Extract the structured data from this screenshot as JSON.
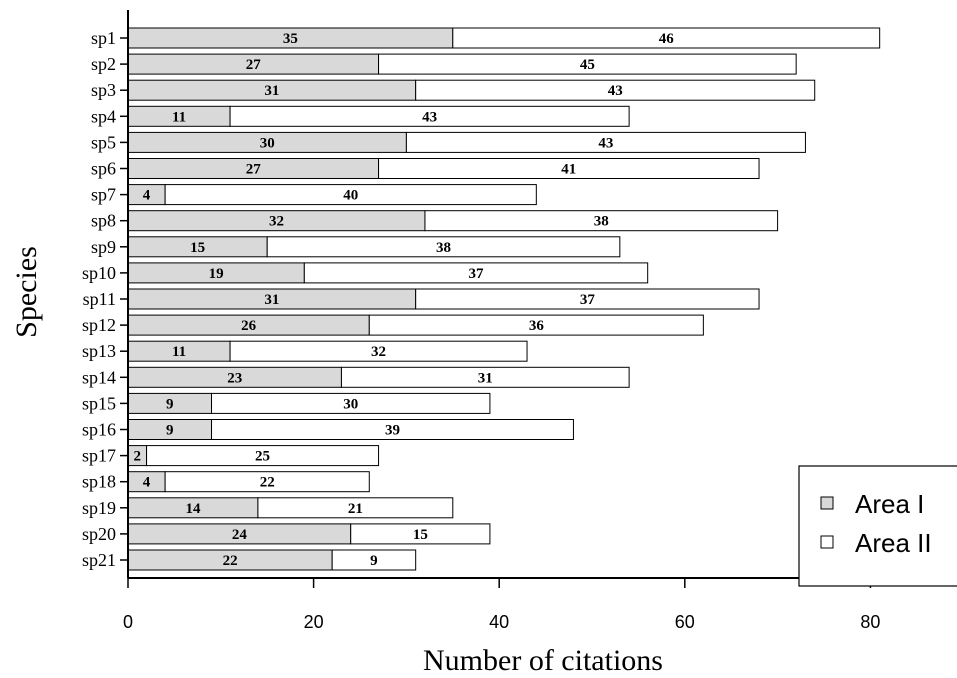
{
  "chart_data": {
    "type": "bar",
    "orientation": "horizontal",
    "stacked": true,
    "title": "",
    "xlabel": "Number of citations",
    "ylabel": "Species",
    "xlim": [
      0,
      89
    ],
    "xticks": [
      0,
      20,
      40,
      60,
      80
    ],
    "categories": [
      "sp1",
      "sp2",
      "sp3",
      "sp4",
      "sp5",
      "sp6",
      "sp7",
      "sp8",
      "sp9",
      "sp10",
      "sp11",
      "sp12",
      "sp13",
      "sp14",
      "sp15",
      "sp16",
      "sp17",
      "sp18",
      "sp19",
      "sp20",
      "sp21"
    ],
    "series": [
      {
        "name": "Area I",
        "color": "#d9d9d9",
        "values": [
          35,
          27,
          31,
          11,
          30,
          27,
          4,
          32,
          15,
          19,
          31,
          26,
          11,
          23,
          9,
          9,
          2,
          4,
          14,
          24,
          22
        ]
      },
      {
        "name": "Area II",
        "color": "#ffffff",
        "values": [
          46,
          45,
          43,
          43,
          43,
          41,
          40,
          38,
          38,
          37,
          37,
          36,
          32,
          31,
          30,
          39,
          25,
          22,
          21,
          15,
          9
        ]
      }
    ],
    "legend": {
      "position": "bottom-right",
      "entries": [
        "Area I",
        "Area II"
      ]
    },
    "grid": false
  }
}
